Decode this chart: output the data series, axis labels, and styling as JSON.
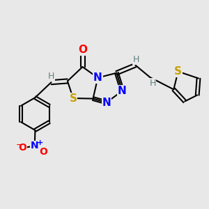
{
  "background_color": "#e8e8e8",
  "figsize": [
    3.0,
    3.0
  ],
  "dpi": 100,
  "bond_color": "#000000",
  "lw": 1.5,
  "atom_bg": "#e8e8e8",
  "colors": {
    "O": "#ff0000",
    "N": "#0000ff",
    "S": "#c8a000",
    "H": "#5f8080",
    "C": "#000000"
  }
}
